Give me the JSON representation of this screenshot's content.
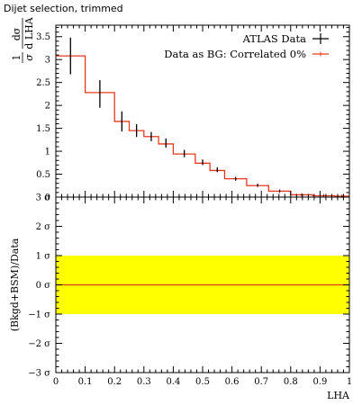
{
  "title": "Dijet selection, trimmed",
  "chart_data": [
    {
      "type": "line",
      "title": "Dijet selection, trimmed",
      "xlabel": "LHA",
      "ylabel": "1/σ dσ/d LHA",
      "ylim": [
        0,
        3.75
      ],
      "xlim": [
        0,
        1
      ],
      "y_ticks": [
        "0",
        "0.5",
        "1",
        "1.5",
        "2",
        "2.5",
        "3",
        "3.5"
      ],
      "legend_position": "top-right",
      "series": [
        {
          "name": "ATLAS Data",
          "style": "points-with-errors",
          "color": "#000000",
          "bins": [
            [
              0.0,
              0.1
            ],
            [
              0.1,
              0.2
            ],
            [
              0.2,
              0.25
            ],
            [
              0.25,
              0.3
            ],
            [
              0.3,
              0.35
            ],
            [
              0.35,
              0.4
            ],
            [
              0.4,
              0.475
            ],
            [
              0.475,
              0.525
            ],
            [
              0.525,
              0.575
            ],
            [
              0.575,
              0.65
            ],
            [
              0.65,
              0.725
            ],
            [
              0.725,
              0.8
            ],
            [
              0.8,
              0.875
            ],
            [
              0.875,
              0.95
            ],
            [
              0.95,
              1.0
            ]
          ],
          "values": [
            3.08,
            2.25,
            1.65,
            1.45,
            1.32,
            1.18,
            0.95,
            0.76,
            0.6,
            0.4,
            0.26,
            0.13,
            0.05,
            0.03,
            0.02
          ],
          "errors": [
            0.4,
            0.3,
            0.22,
            0.14,
            0.1,
            0.1,
            0.08,
            0.06,
            0.05,
            0.04,
            0.03,
            0.02,
            0.01,
            0.01,
            0.01
          ]
        },
        {
          "name": "Data as BG: Correlated 0%",
          "style": "histogram",
          "color": "#e8391c",
          "bins": [
            [
              0.0,
              0.1
            ],
            [
              0.1,
              0.2
            ],
            [
              0.2,
              0.25
            ],
            [
              0.25,
              0.3
            ],
            [
              0.3,
              0.35
            ],
            [
              0.35,
              0.4
            ],
            [
              0.4,
              0.475
            ],
            [
              0.475,
              0.525
            ],
            [
              0.525,
              0.575
            ],
            [
              0.575,
              0.65
            ],
            [
              0.65,
              0.725
            ],
            [
              0.725,
              0.8
            ],
            [
              0.8,
              0.875
            ],
            [
              0.875,
              0.95
            ],
            [
              0.95,
              1.0
            ]
          ],
          "values": [
            3.08,
            2.28,
            1.65,
            1.45,
            1.32,
            1.16,
            0.94,
            0.74,
            0.58,
            0.4,
            0.25,
            0.13,
            0.05,
            0.03,
            0.02
          ]
        }
      ]
    },
    {
      "type": "line",
      "xlabel": "LHA",
      "ylabel": "(Bkgd+BSM)/Data",
      "ylim": [
        -3,
        3
      ],
      "xlim": [
        0,
        1
      ],
      "y_ticks": [
        "−3 σ",
        "−2 σ",
        "−1 σ",
        "0 σ",
        "1 σ",
        "2 σ",
        "3 σ"
      ],
      "x_ticks": [
        "0",
        "0.1",
        "0.2",
        "0.3",
        "0.4",
        "0.5",
        "0.6",
        "0.7",
        "0.8",
        "0.9",
        "1"
      ],
      "band": {
        "from": -1,
        "to": 1,
        "color": "#ffff00"
      },
      "series": [
        {
          "name": "Data as BG: Correlated 0%",
          "color": "#e8391c",
          "x": [
            0,
            1
          ],
          "values": [
            0,
            0
          ]
        }
      ]
    }
  ],
  "legend": {
    "entries": [
      {
        "label": "ATLAS Data",
        "color": "#000000",
        "kind": "errorbar"
      },
      {
        "label": "Data as BG: Correlated 0%",
        "color": "#e8391c",
        "kind": "line"
      }
    ]
  }
}
